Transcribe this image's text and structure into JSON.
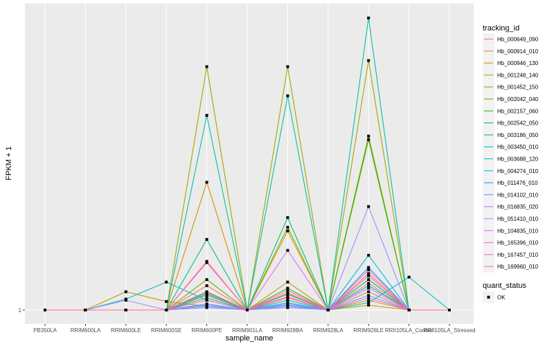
{
  "chart_data": {
    "type": "line",
    "xlabel": "sample_name",
    "ylabel": "FPKM + 1",
    "categories": [
      "PB350LA",
      "RRIM600LA",
      "RRIM600LE",
      "RRIM600SE",
      "RRIM600PE",
      "RRIM901LA",
      "RRIM928BA",
      "RRIM928LA",
      "RRIM928LE",
      "RRII105LA_Control",
      "RRII105LA_Stressed"
    ],
    "y_ticks": [
      {
        "value": 1,
        "label": "1"
      }
    ],
    "ylim": [
      0.8,
      23.5
    ],
    "grid": true,
    "legend_position": "right",
    "legend_title": "tracking_id",
    "status_legend": {
      "title": "quant_status",
      "items": [
        {
          "label": "OK"
        }
      ]
    },
    "series": [
      {
        "name": "Hb_000649_090",
        "color": "#F8766D",
        "values": [
          1,
          1,
          1,
          1,
          3.0,
          1,
          2.0,
          1,
          4.0,
          1,
          1
        ]
      },
      {
        "name": "Hb_000914_010",
        "color": "#EA8331",
        "values": [
          1,
          1,
          1,
          1,
          2.2,
          1,
          1.8,
          1,
          2.5,
          1,
          1
        ]
      },
      {
        "name": "Hb_000946_130",
        "color": "#D89000",
        "values": [
          1,
          1,
          1,
          1,
          11.5,
          1,
          7.5,
          1,
          1.8,
          1,
          1
        ]
      },
      {
        "name": "Hb_001248_140",
        "color": "#C09B00",
        "values": [
          1,
          1,
          2.5,
          1.7,
          1.3,
          1,
          3.3,
          1,
          1.4,
          1,
          1
        ]
      },
      {
        "name": "Hb_001452_150",
        "color": "#A3A500",
        "values": [
          1,
          1,
          1,
          1,
          21.0,
          1,
          21.0,
          1,
          21.5,
          1,
          1
        ]
      },
      {
        "name": "Hb_002042_040",
        "color": "#7CAE00",
        "values": [
          1,
          1,
          1,
          1,
          3.5,
          1,
          7.8,
          1,
          15.3,
          1,
          1
        ]
      },
      {
        "name": "Hb_002157_060",
        "color": "#39B600",
        "values": [
          1,
          1,
          1,
          1,
          2.5,
          1,
          2.8,
          1,
          15.0,
          1,
          1
        ]
      },
      {
        "name": "Hb_002542_050",
        "color": "#00BB4E",
        "values": [
          1,
          1,
          1,
          1,
          2.0,
          1,
          2.3,
          1,
          3.5,
          1,
          1
        ]
      },
      {
        "name": "Hb_003186_050",
        "color": "#00BF7D",
        "values": [
          1,
          1,
          1,
          1,
          6.8,
          1,
          8.6,
          1,
          3.0,
          1,
          1
        ]
      },
      {
        "name": "Hb_003450_010",
        "color": "#00C1A3",
        "values": [
          1,
          1,
          1,
          1,
          17.0,
          1,
          18.6,
          1,
          25.0,
          1,
          1
        ]
      },
      {
        "name": "Hb_003688_120",
        "color": "#00BFC4",
        "values": [
          1,
          1,
          1.9,
          3.3,
          1.8,
          1,
          1.6,
          1,
          1.6,
          3.7,
          1
        ]
      },
      {
        "name": "Hb_004274_010",
        "color": "#00B8E7",
        "values": [
          1,
          1,
          1,
          1,
          2.3,
          1,
          1.8,
          1,
          5.5,
          1,
          1
        ]
      },
      {
        "name": "Hb_011476_010",
        "color": "#00A9FF",
        "values": [
          1,
          1,
          1,
          1,
          1.5,
          1,
          1.4,
          1,
          4.5,
          1,
          1
        ]
      },
      {
        "name": "Hb_014102_010",
        "color": "#619CFF",
        "values": [
          1,
          1,
          1,
          1,
          1.2,
          1,
          1.2,
          1,
          2.2,
          1,
          1
        ]
      },
      {
        "name": "Hb_016835_020",
        "color": "#9F8CFF",
        "values": [
          1,
          1,
          1.8,
          1,
          1.4,
          1,
          1.5,
          1,
          9.5,
          1,
          1
        ]
      },
      {
        "name": "Hb_051410_010",
        "color": "#C77CFF",
        "values": [
          1,
          1,
          1,
          1,
          1.3,
          1,
          1.3,
          1,
          2.8,
          1,
          1
        ]
      },
      {
        "name": "Hb_104835_010",
        "color": "#E76BF3",
        "values": [
          1,
          1,
          1,
          1,
          2.4,
          1,
          5.9,
          1,
          2.0,
          1,
          1
        ]
      },
      {
        "name": "Hb_165396_010",
        "color": "#FA62DB",
        "values": [
          1,
          1,
          1,
          1,
          5.0,
          1,
          2.6,
          1,
          3.2,
          1,
          1
        ]
      },
      {
        "name": "Hb_167457_010",
        "color": "#FF62BC",
        "values": [
          1,
          1,
          1,
          1,
          1.8,
          1,
          2.1,
          1,
          4.3,
          1,
          1
        ]
      },
      {
        "name": "Hb_169960_010",
        "color": "#FF6C91",
        "values": [
          1,
          1,
          1,
          1,
          4.9,
          1,
          2.4,
          1,
          3.8,
          1,
          1
        ]
      }
    ]
  }
}
